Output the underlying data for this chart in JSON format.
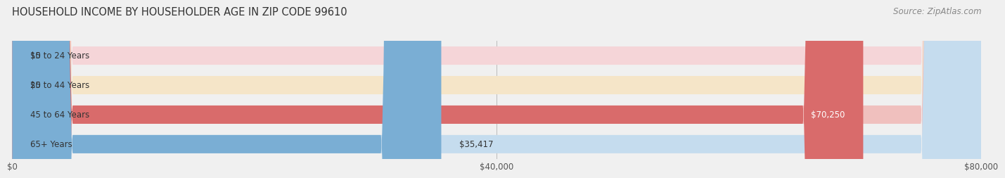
{
  "title": "HOUSEHOLD INCOME BY HOUSEHOLDER AGE IN ZIP CODE 99610",
  "source": "Source: ZipAtlas.com",
  "categories": [
    "15 to 24 Years",
    "25 to 44 Years",
    "45 to 64 Years",
    "65+ Years"
  ],
  "values": [
    0,
    0,
    70250,
    35417
  ],
  "bar_colors": [
    "#e8828a",
    "#e8b870",
    "#d96b6b",
    "#7aaed4"
  ],
  "bar_colors_light": [
    "#f5d5d8",
    "#f5e5c8",
    "#f0c0be",
    "#c5dcee"
  ],
  "xlim": [
    0,
    80000
  ],
  "xticks": [
    0,
    40000,
    80000
  ],
  "xticklabels": [
    "$0",
    "$40,000",
    "$80,000"
  ],
  "value_label_colors": [
    "#333333",
    "#333333",
    "#ffffff",
    "#333333"
  ],
  "bg_color": "#f0f0f0",
  "bar_height": 0.62,
  "title_fontsize": 10.5,
  "source_fontsize": 8.5,
  "tick_fontsize": 8.5,
  "label_fontsize": 8.5
}
